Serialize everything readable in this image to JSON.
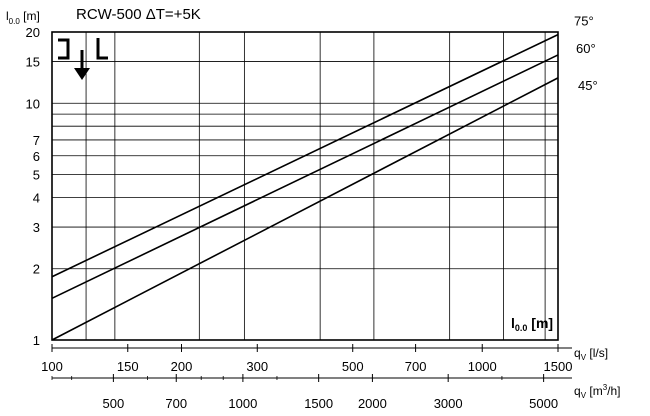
{
  "chart_data": {
    "type": "line",
    "title": "RCW-500 ΔT=+5K",
    "ylabel": {
      "main": "l",
      "sub": "0.0",
      "unit": " [m]"
    },
    "xlabel_ls": {
      "main": "q",
      "sub": "V",
      "unit": " [l/s]"
    },
    "xlabel_m3h": {
      "main": "q",
      "sub": "V",
      "unit": " [m",
      "sup": "3",
      "tail": "/h]"
    },
    "legend_box": {
      "main": "l",
      "sub": "0.0",
      "unit": " [m]"
    },
    "x_scale": "log",
    "y_scale": "log",
    "xlim": [
      100,
      1500
    ],
    "ylim": [
      1,
      20
    ],
    "grid": true,
    "x_ticks": [
      100,
      150,
      200,
      300,
      500,
      700,
      1000,
      1500
    ],
    "x_tick_labels": [
      "100",
      "150",
      "200",
      "300",
      "500",
      "700",
      "1000",
      "1500"
    ],
    "x_grid": [
      120,
      140,
      220,
      280,
      420,
      560,
      840,
      1120,
      1400
    ],
    "x2_ticks_m3h": [
      500,
      700,
      1000,
      1500,
      2000,
      3000,
      5000
    ],
    "x2_tick_labels": [
      "500",
      "700",
      "1000",
      "1500",
      "2000",
      "3000",
      "5000"
    ],
    "x2_minor_m3h": [
      360,
      400,
      600,
      800,
      900,
      1200,
      4000
    ],
    "y_ticks": [
      1,
      2,
      3,
      4,
      5,
      6,
      7,
      10,
      15,
      20
    ],
    "y_tick_labels": [
      "1",
      "2",
      "3",
      "4",
      "5",
      "6",
      "7",
      "10",
      "15",
      "20"
    ],
    "y_grid": [
      2,
      3,
      4,
      5,
      6,
      7,
      8,
      9,
      10,
      15
    ],
    "series": [
      {
        "name": "75°",
        "x": [
          100,
          1500
        ],
        "y": [
          1.85,
          19.5
        ]
      },
      {
        "name": "60°",
        "x": [
          100,
          1500
        ],
        "y": [
          1.5,
          16.0
        ]
      },
      {
        "name": "45°",
        "x": [
          100,
          1500
        ],
        "y": [
          1.0,
          12.8
        ]
      }
    ]
  }
}
